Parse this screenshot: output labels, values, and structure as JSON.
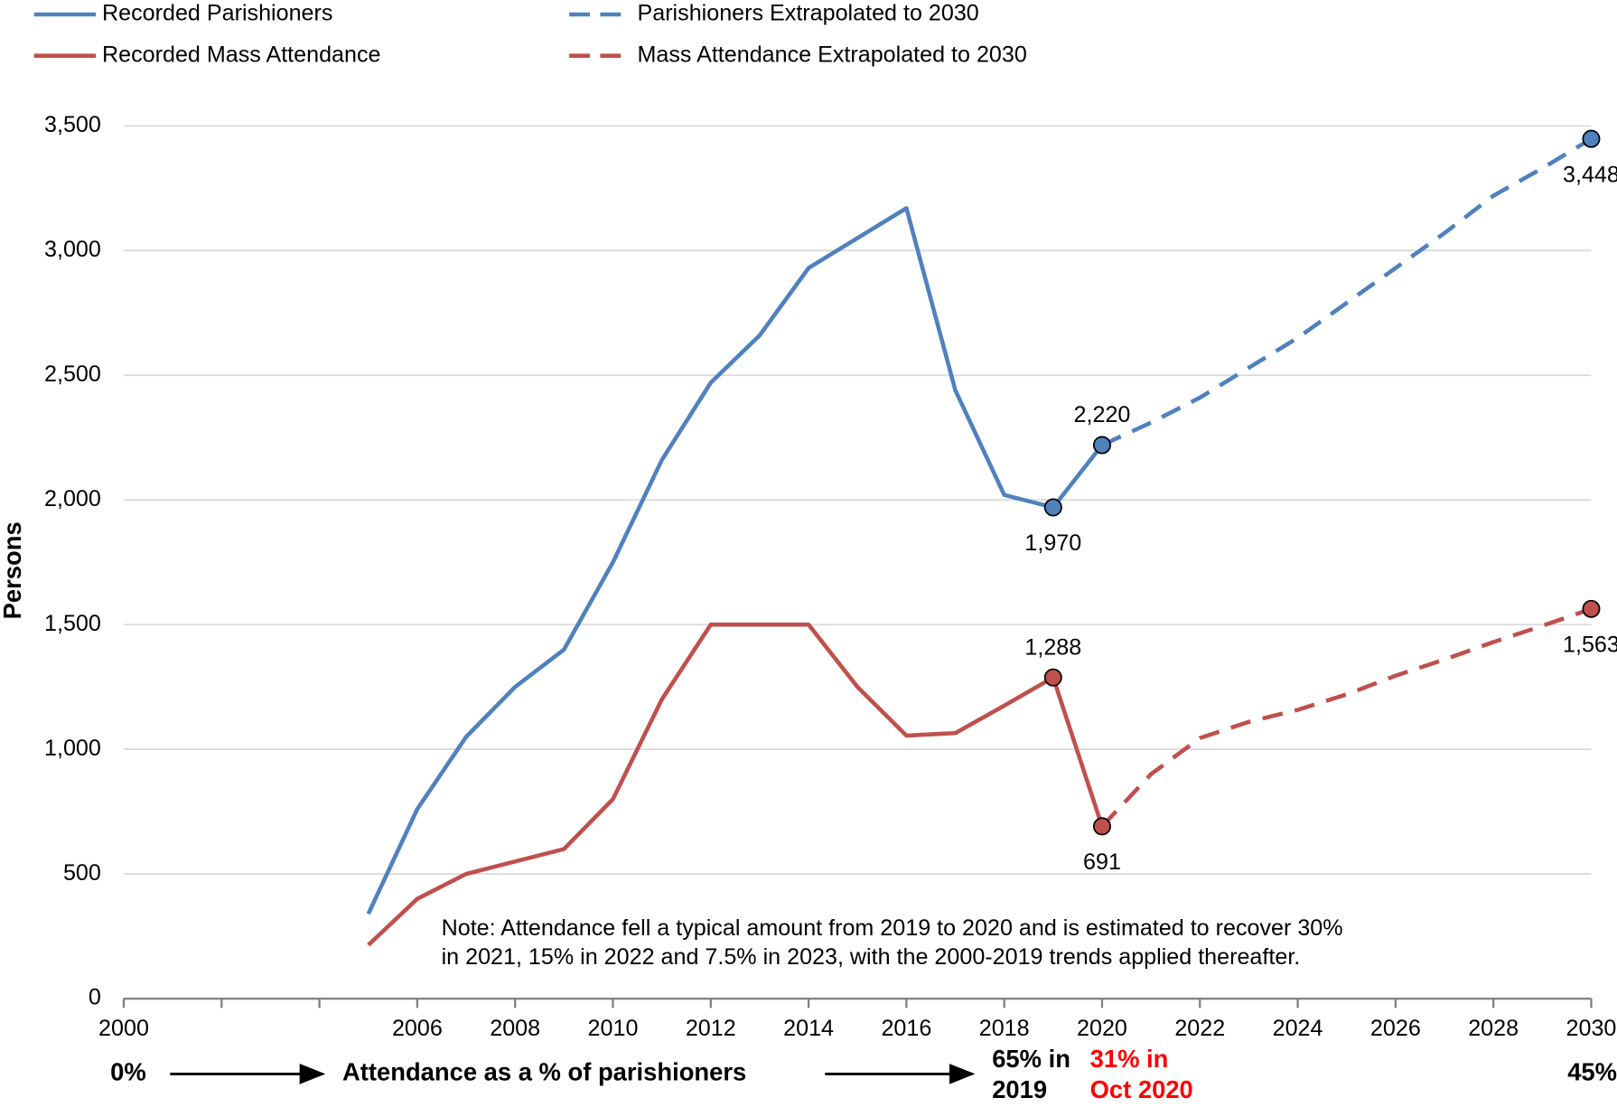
{
  "chart_data": {
    "type": "line",
    "ylabel": "Persons",
    "xlim": [
      2000,
      2030
    ],
    "xticks": [
      2000,
      {
        "value": 2002,
        "label": null
      },
      {
        "value": 2004,
        "label": null
      },
      2006,
      2008,
      2010,
      2012,
      2014,
      2016,
      2018,
      2020,
      2022,
      2024,
      2026,
      2028,
      2030
    ],
    "ylim": [
      0,
      3500
    ],
    "yticks": [
      0,
      500,
      {
        "value": 1000,
        "label": "1,000"
      },
      {
        "value": 1500,
        "label": "1,500"
      },
      {
        "value": 2000,
        "label": "2,000"
      },
      {
        "value": 2500,
        "label": "2,500"
      },
      {
        "value": 3000,
        "label": "3,000"
      },
      {
        "value": 3500,
        "label": "3,500"
      }
    ],
    "grid": true,
    "series": [
      {
        "name": "Recorded Parishioners",
        "color": "#4f81bd",
        "dashed": false,
        "x": [
          2005,
          2006,
          2007,
          2008,
          2009,
          2010,
          2011,
          2012,
          2013,
          2014,
          2015,
          2016,
          2017,
          2018,
          2019,
          2020
        ],
        "values": [
          340,
          760,
          1050,
          1250,
          1400,
          1750,
          2160,
          2470,
          2660,
          2930,
          3050,
          3170,
          2440,
          2020,
          1970,
          2220
        ],
        "value_labels": [
          null,
          null,
          null,
          null,
          null,
          null,
          null,
          null,
          null,
          null,
          null,
          null,
          null,
          null,
          "1,970",
          "2,220"
        ]
      },
      {
        "name": "Recorded Mass Attendance",
        "color": "#c0504d",
        "dashed": false,
        "x": [
          2005,
          2006,
          2007,
          2008,
          2009,
          2010,
          2011,
          2012,
          2013,
          2014,
          2015,
          2016,
          2017,
          2018,
          2019,
          2020
        ],
        "values": [
          215,
          400,
          500,
          550,
          600,
          800,
          1200,
          1500,
          1500,
          1500,
          1250,
          1055,
          1065,
          1175,
          1288,
          691
        ],
        "value_labels": [
          null,
          null,
          null,
          null,
          null,
          null,
          null,
          null,
          null,
          null,
          null,
          null,
          null,
          null,
          "1,288",
          "691"
        ]
      },
      {
        "name": "Parishioners Extrapolated to 2030",
        "color": "#4f81bd",
        "dashed": true,
        "x": [
          2020,
          2021,
          2022,
          2023,
          2024,
          2025,
          2026,
          2027,
          2028,
          2029,
          2030
        ],
        "values": [
          2220,
          2310,
          2410,
          2530,
          2650,
          2790,
          2930,
          3070,
          3220,
          3330,
          3448
        ],
        "value_labels": [
          null,
          null,
          null,
          null,
          null,
          null,
          null,
          null,
          null,
          null,
          "3,448"
        ]
      },
      {
        "name": "Mass Attendance Extrapolated to 2030",
        "color": "#c0504d",
        "dashed": true,
        "x": [
          2020,
          2021,
          2022,
          2023,
          2024,
          2025,
          2026,
          2027,
          2028,
          2029,
          2030
        ],
        "values": [
          691,
          900,
          1045,
          1110,
          1158,
          1220,
          1295,
          1360,
          1430,
          1495,
          1563
        ],
        "value_labels": [
          null,
          null,
          null,
          null,
          null,
          null,
          null,
          null,
          null,
          null,
          "1,563"
        ]
      }
    ],
    "note": [
      "Note: Attendance fell a typical amount from 2019 to 2020 and is estimated to recover 30%",
      "in 2021, 15% in 2022 and 7.5% in 2023, with the 2000-2019 trends applied thereafter."
    ],
    "annotations": [
      {
        "lines": [
          "0%"
        ],
        "color": "#000000"
      },
      {
        "lines": [
          "Attendance as a % of parishioners"
        ],
        "color": "#000000"
      },
      {
        "lines": [
          "65% in",
          "2019"
        ],
        "color": "#000000"
      },
      {
        "lines": [
          "31% in",
          "Oct 2020"
        ],
        "color": "#ff0000"
      },
      {
        "lines": [
          "45%"
        ],
        "color": "#000000"
      }
    ]
  }
}
